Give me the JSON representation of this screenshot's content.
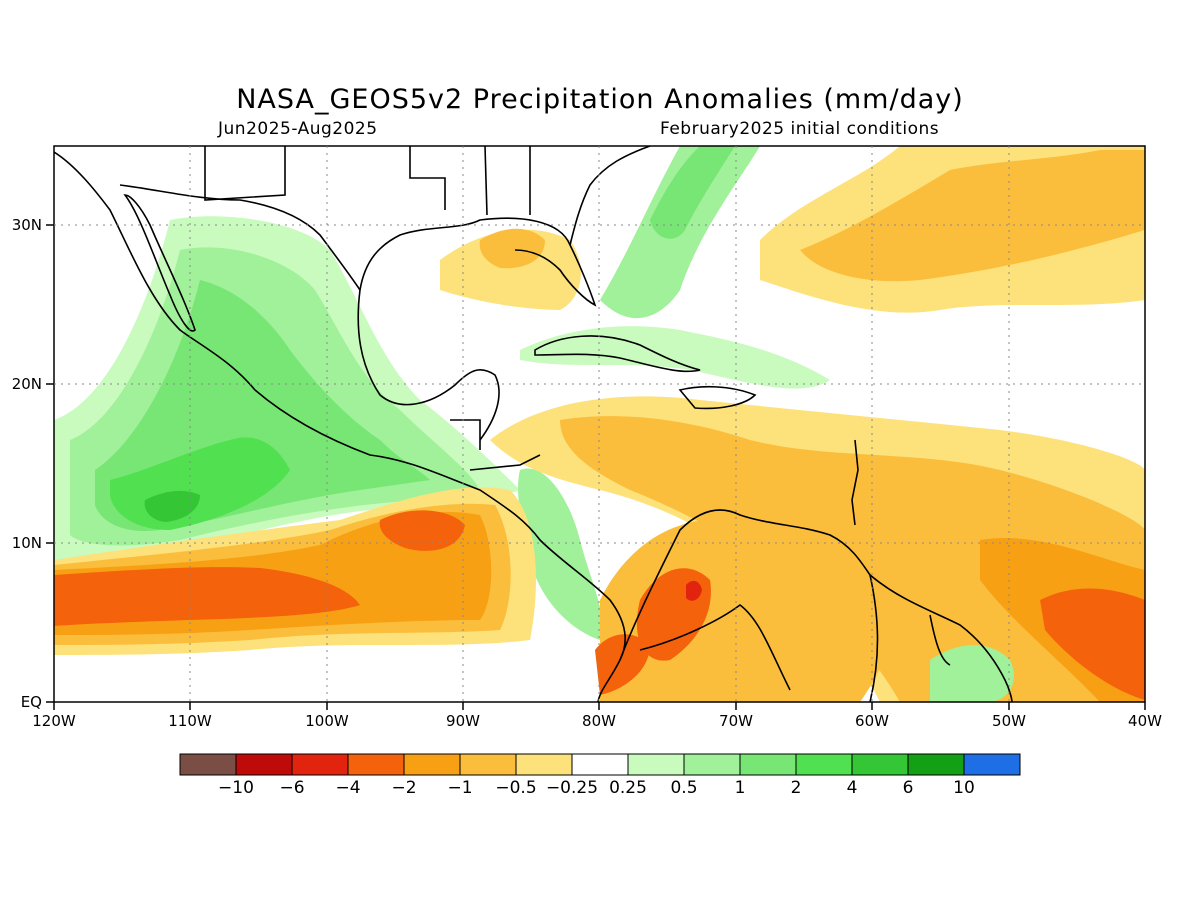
{
  "header": {
    "title": "NASA_GEOS5v2 Precipitation Anomalies (mm/day)",
    "period": "Jun2025-Aug2025",
    "init": "February2025 initial conditions"
  },
  "axes": {
    "lon_labels": [
      "120W",
      "110W",
      "100W",
      "90W",
      "80W",
      "70W",
      "60W",
      "50W",
      "40W"
    ],
    "lat_labels": [
      "EQ",
      "10N",
      "20N",
      "30N"
    ]
  },
  "colorbar": {
    "colors": [
      "#7a4e45",
      "#bf0a0a",
      "#e2240f",
      "#f5620c",
      "#f8a014",
      "#fbbe3c",
      "#fde27c",
      "#ffffff",
      "#c9fbbe",
      "#a1f09a",
      "#78e674",
      "#50e050",
      "#34c634",
      "#14a014",
      "#1e6ee6"
    ],
    "labels": [
      "−10",
      "−6",
      "−4",
      "−2",
      "−1",
      "−0.5",
      "−0.25",
      "0.25",
      "0.5",
      "1",
      "2",
      "4",
      "6",
      "10"
    ]
  }
}
